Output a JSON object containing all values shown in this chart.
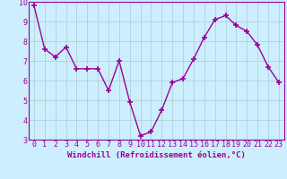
{
  "x": [
    0,
    1,
    2,
    3,
    4,
    5,
    6,
    7,
    8,
    9,
    10,
    11,
    12,
    13,
    14,
    15,
    16,
    17,
    18,
    19,
    20,
    21,
    22,
    23
  ],
  "y": [
    9.8,
    7.6,
    7.2,
    7.7,
    6.6,
    6.6,
    6.6,
    5.5,
    7.0,
    4.9,
    3.2,
    3.4,
    4.5,
    5.9,
    6.1,
    7.1,
    8.2,
    9.1,
    9.3,
    8.8,
    8.5,
    7.8,
    6.7,
    5.9
  ],
  "line_color": "#990099",
  "marker": "+",
  "marker_size": 5,
  "marker_linewidth": 1.2,
  "bg_color": "#cceeff",
  "grid_color": "#aacccc",
  "xlabel": "Windchill (Refroidissement éolien,°C)",
  "xlabel_color": "#990099",
  "tick_color": "#990099",
  "spine_color": "#990099",
  "ylim": [
    3,
    10
  ],
  "xlim": [
    -0.5,
    23.5
  ],
  "yticks": [
    3,
    4,
    5,
    6,
    7,
    8,
    9,
    10
  ],
  "xticks": [
    0,
    1,
    2,
    3,
    4,
    5,
    6,
    7,
    8,
    9,
    10,
    11,
    12,
    13,
    14,
    15,
    16,
    17,
    18,
    19,
    20,
    21,
    22,
    23
  ],
  "xlabel_fontsize": 6.5,
  "tick_fontsize": 6,
  "linewidth": 1.0,
  "figsize": [
    3.2,
    2.0
  ],
  "dpi": 100
}
